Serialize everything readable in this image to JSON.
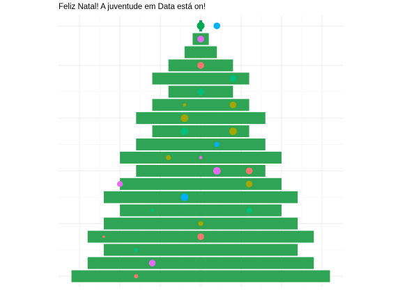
{
  "chart_data": {
    "type": "bar",
    "title": "Feliz Natal! A juventude em Data está on!",
    "xlabel": "",
    "ylabel": "",
    "grid": true,
    "x_ticks_shown": false,
    "y_ticks_shown": false,
    "x_range": [
      -8.8,
      8.8
    ],
    "y_range": [
      0.2,
      20.8
    ],
    "tree_color": "#30A455",
    "star_color": "#00A651",
    "ornament_colors": {
      "salmon": "#F8766D",
      "olive": "#A3A500",
      "green": "#00BF7D",
      "blue": "#00B0F6",
      "pink": "#E76BF3"
    },
    "layers": [
      {
        "y": 1,
        "half_width": 8
      },
      {
        "y": 2,
        "half_width": 7
      },
      {
        "y": 3,
        "half_width": 6
      },
      {
        "y": 4,
        "half_width": 7
      },
      {
        "y": 5,
        "half_width": 6
      },
      {
        "y": 6,
        "half_width": 5
      },
      {
        "y": 7,
        "half_width": 6
      },
      {
        "y": 8,
        "half_width": 5
      },
      {
        "y": 9,
        "half_width": 4
      },
      {
        "y": 10,
        "half_width": 5
      },
      {
        "y": 11,
        "half_width": 4
      },
      {
        "y": 12,
        "half_width": 3
      },
      {
        "y": 13,
        "half_width": 4
      },
      {
        "y": 14,
        "half_width": 3
      },
      {
        "y": 15,
        "half_width": 2
      },
      {
        "y": 16,
        "half_width": 3
      },
      {
        "y": 17,
        "half_width": 2
      },
      {
        "y": 18,
        "half_width": 1
      },
      {
        "y": 19,
        "half_width": 0.5
      }
    ],
    "star": {
      "x": 0,
      "y": 20
    },
    "ornaments": [
      {
        "x": 1,
        "y": 20,
        "color": "blue",
        "size": 3
      },
      {
        "x": 0,
        "y": 19,
        "color": "pink",
        "size": 3
      },
      {
        "x": 0,
        "y": 17,
        "color": "salmon",
        "size": 3
      },
      {
        "x": 2,
        "y": 16,
        "color": "green",
        "size": 3
      },
      {
        "x": 0,
        "y": 15,
        "color": "green",
        "size": 3
      },
      {
        "x": -1,
        "y": 14,
        "color": "olive",
        "size": 1
      },
      {
        "x": 2,
        "y": 14,
        "color": "olive",
        "size": 3
      },
      {
        "x": -1,
        "y": 13,
        "color": "olive",
        "size": 3.5
      },
      {
        "x": -1,
        "y": 12,
        "color": "green",
        "size": 3.5
      },
      {
        "x": 2,
        "y": 12,
        "color": "olive",
        "size": 3.5
      },
      {
        "x": 1,
        "y": 11,
        "color": "blue",
        "size": 2
      },
      {
        "x": -2,
        "y": 10,
        "color": "olive",
        "size": 2
      },
      {
        "x": 0,
        "y": 10,
        "color": "pink",
        "size": 1
      },
      {
        "x": 1,
        "y": 9,
        "color": "pink",
        "size": 3.5
      },
      {
        "x": 3,
        "y": 9,
        "color": "salmon",
        "size": 3
      },
      {
        "x": -5,
        "y": 8,
        "color": "pink",
        "size": 2.5
      },
      {
        "x": 3,
        "y": 8,
        "color": "olive",
        "size": 3
      },
      {
        "x": -1,
        "y": 7,
        "color": "blue",
        "size": 3.5
      },
      {
        "x": -3,
        "y": 6,
        "color": "green",
        "size": 1
      },
      {
        "x": 3,
        "y": 6,
        "color": "green",
        "size": 2.5
      },
      {
        "x": 0,
        "y": 5,
        "color": "olive",
        "size": 2
      },
      {
        "x": 0,
        "y": 4,
        "color": "salmon",
        "size": 3
      },
      {
        "x": -6,
        "y": 4,
        "color": "salmon",
        "size": 0.5
      },
      {
        "x": -4,
        "y": 3,
        "color": "green",
        "size": 1.5
      },
      {
        "x": -3,
        "y": 2,
        "color": "pink",
        "size": 3
      },
      {
        "x": -4,
        "y": 1,
        "color": "salmon",
        "size": 1.5
      }
    ]
  }
}
